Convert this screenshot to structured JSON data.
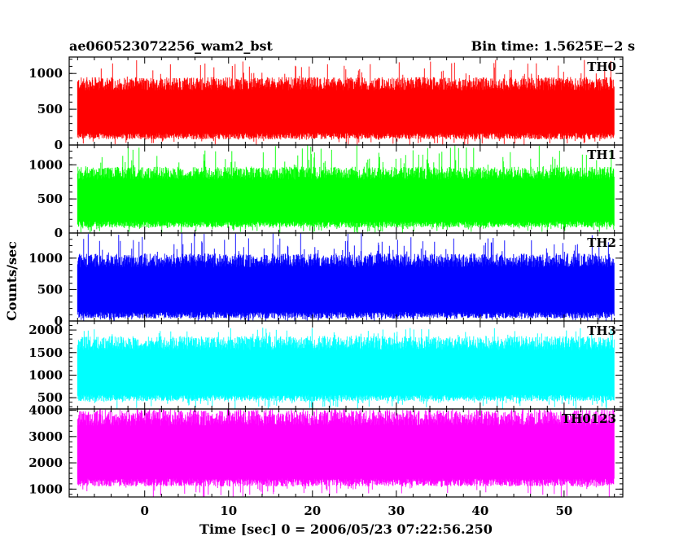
{
  "chart_data": {
    "type": "line",
    "title_left": "ae060523072256_wam2_bst",
    "title_right": "Bin time: 1.5625E−2 s",
    "xlabel": "Time [sec] 0 = 2006/05/23 07:22:56.250",
    "ylabel": "Counts/sec",
    "xlim": [
      -9,
      57
    ],
    "x_ticks": [
      0,
      10,
      20,
      30,
      40,
      50
    ],
    "x_tick_labels": [
      "0",
      "10",
      "20",
      "30",
      "40",
      "50"
    ],
    "x_data_range": [
      -8,
      56
    ],
    "bin_time_s": 0.015625,
    "panels": [
      {
        "name": "TH0",
        "color": "#ff0000",
        "ylim": [
          0,
          1230
        ],
        "y_ticks": [
          0,
          500,
          1000
        ],
        "y_tick_labels": [
          "0",
          "500",
          "1000"
        ],
        "base_min": 80,
        "base_max": 820,
        "spike_max": 1200
      },
      {
        "name": "TH1",
        "color": "#00ff00",
        "ylim": [
          0,
          1290
        ],
        "y_ticks": [
          0,
          500,
          1000
        ],
        "y_tick_labels": [
          "0",
          "500",
          "1000"
        ],
        "base_min": 80,
        "base_max": 840,
        "spike_max": 1290
      },
      {
        "name": "TH2",
        "color": "#0000ff",
        "ylim": [
          0,
          1400
        ],
        "y_ticks": [
          0,
          500,
          1000
        ],
        "y_tick_labels": [
          "0",
          "500",
          "1000"
        ],
        "base_min": 40,
        "base_max": 920,
        "spike_max": 1400
      },
      {
        "name": "TH3",
        "color": "#00ffff",
        "ylim": [
          250,
          2200
        ],
        "y_ticks": [
          500,
          1000,
          1500,
          2000
        ],
        "y_tick_labels": [
          "500",
          "1000",
          "1500",
          "2000"
        ],
        "base_min": 420,
        "base_max": 1650,
        "spike_max": 2050
      },
      {
        "name": "TH0123",
        "color": "#ff00ff",
        "ylim": [
          700,
          4050
        ],
        "y_ticks": [
          1000,
          2000,
          3000,
          4000
        ],
        "y_tick_labels": [
          "1000",
          "2000",
          "3000",
          "4000"
        ],
        "base_min": 1100,
        "base_max": 3600,
        "spike_max": 4050
      }
    ]
  }
}
